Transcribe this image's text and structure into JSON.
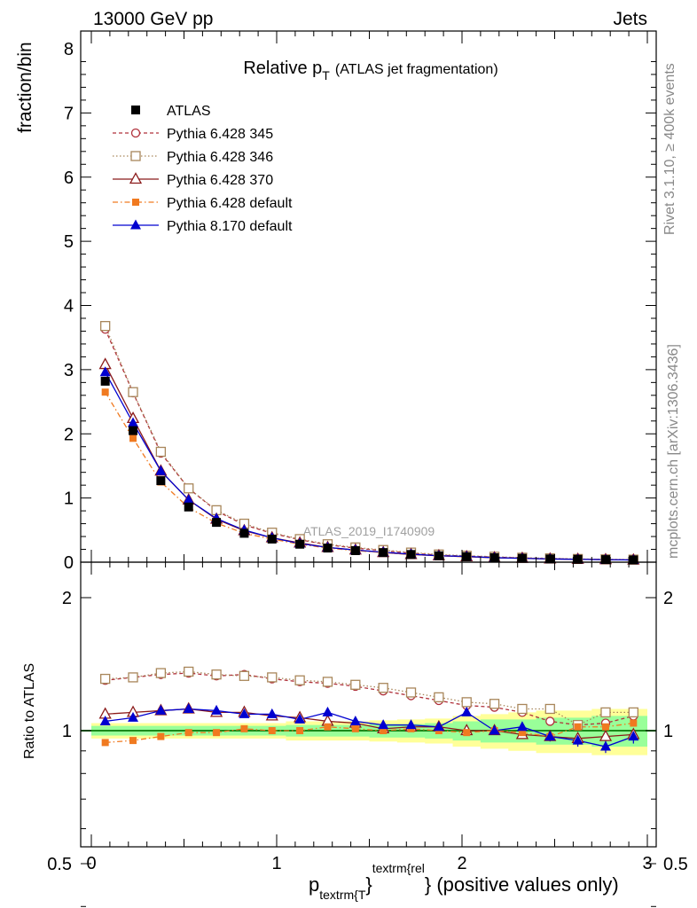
{
  "header": {
    "left": "13000 GeV pp",
    "right": "Jets"
  },
  "side_labels": {
    "rivet": "Rivet 3.1.10, ≥ 400k events",
    "mcplots": "mcplots.cern.ch [arXiv:1306.3436]"
  },
  "chart_data": {
    "type": "line",
    "title_main": "Relative p",
    "title_sub": "T",
    "title_rest": "(ATLAS jet fragmentation)",
    "watermark": "ATLAS_2019_I1740909",
    "ylabel": "fraction/bin",
    "ratio_ylabel": "Ratio to ATLAS",
    "xlabel_p": "p",
    "xlabel_sub": "textrm{T",
    "xlabel_brace": "}",
    "xlabel_sup": "textrm{rel",
    "xlabel_rest": "} (positive values only)",
    "xlim": [
      -0.05,
      3.05
    ],
    "ylim": [
      0,
      8.25
    ],
    "ratio_ylim": [
      0.35,
      2.3
    ],
    "ratio_log": true,
    "x_ticks": [
      "0",
      "1",
      "2",
      "3"
    ],
    "y_ticks": [
      "0",
      "1",
      "2",
      "3",
      "4",
      "5",
      "6",
      "7",
      "8"
    ],
    "ratio_ticks": [
      "0.5",
      "1",
      "2"
    ],
    "legend_position": "top-left",
    "x": [
      0.075,
      0.225,
      0.375,
      0.525,
      0.675,
      0.825,
      0.975,
      1.125,
      1.275,
      1.425,
      1.575,
      1.725,
      1.875,
      2.025,
      2.175,
      2.325,
      2.475,
      2.625,
      2.775,
      2.925
    ],
    "reference": {
      "name": "ATLAS",
      "color": "#000000",
      "values": [
        2.82,
        2.05,
        1.27,
        0.86,
        0.62,
        0.45,
        0.36,
        0.28,
        0.22,
        0.18,
        0.15,
        0.12,
        0.1,
        0.085,
        0.07,
        0.06,
        0.05,
        0.045,
        0.04,
        0.035
      ],
      "band_inner": [
        0.025,
        0.025,
        0.025,
        0.025,
        0.025,
        0.025,
        0.025,
        0.03,
        0.03,
        0.03,
        0.035,
        0.035,
        0.04,
        0.05,
        0.06,
        0.06,
        0.07,
        0.07,
        0.08,
        0.08
      ],
      "band_outer": [
        0.04,
        0.04,
        0.04,
        0.04,
        0.04,
        0.04,
        0.04,
        0.05,
        0.05,
        0.05,
        0.055,
        0.06,
        0.065,
        0.08,
        0.09,
        0.1,
        0.11,
        0.11,
        0.12,
        0.12
      ]
    },
    "series": [
      {
        "name": "Pythia 6.428 345",
        "color": "#b0303a",
        "marker": "circle-open",
        "dash": "4,3",
        "values": [
          3.63,
          2.64,
          1.7,
          1.15,
          0.8,
          0.58,
          0.45,
          0.35,
          0.27,
          0.22,
          0.18,
          0.14,
          0.11,
          0.095,
          0.08,
          0.065,
          0.055,
          0.046,
          0.042,
          0.037
        ],
        "ratio": [
          1.3,
          1.32,
          1.34,
          1.35,
          1.33,
          1.34,
          1.31,
          1.29,
          1.28,
          1.26,
          1.23,
          1.2,
          1.17,
          1.14,
          1.13,
          1.1,
          1.05,
          1.03,
          1.04,
          1.08
        ]
      },
      {
        "name": "Pythia 6.428 346",
        "color": "#a8865a",
        "marker": "square-open",
        "dash": "1.5,2.5",
        "values": [
          3.68,
          2.65,
          1.72,
          1.15,
          0.81,
          0.6,
          0.46,
          0.36,
          0.28,
          0.23,
          0.19,
          0.15,
          0.12,
          0.1,
          0.085,
          0.07,
          0.06,
          0.05,
          0.045,
          0.04
        ],
        "ratio": [
          1.31,
          1.32,
          1.35,
          1.36,
          1.34,
          1.33,
          1.32,
          1.3,
          1.29,
          1.27,
          1.25,
          1.22,
          1.19,
          1.16,
          1.15,
          1.12,
          1.12,
          1.03,
          1.1,
          1.1
        ]
      },
      {
        "name": "Pythia 6.428 370",
        "color": "#8b1a1a",
        "marker": "triangle-open",
        "dash": "",
        "values": [
          3.08,
          2.24,
          1.42,
          0.97,
          0.67,
          0.49,
          0.38,
          0.3,
          0.23,
          0.19,
          0.15,
          0.12,
          0.1,
          0.085,
          0.07,
          0.06,
          0.05,
          0.045,
          0.04,
          0.035
        ],
        "ratio": [
          1.09,
          1.1,
          1.11,
          1.12,
          1.1,
          1.1,
          1.08,
          1.07,
          1.05,
          1.04,
          1.01,
          1.02,
          1.02,
          1.0,
          1.0,
          0.98,
          0.97,
          0.96,
          0.97,
          0.98
        ]
      },
      {
        "name": "Pythia 6.428 default",
        "color": "#f07a20",
        "marker": "square-filled",
        "dash": "6,3,1.5,3",
        "values": [
          2.65,
          1.93,
          1.25,
          0.85,
          0.61,
          0.45,
          0.36,
          0.28,
          0.22,
          0.18,
          0.15,
          0.12,
          0.1,
          0.085,
          0.07,
          0.06,
          0.05,
          0.045,
          0.04,
          0.035
        ],
        "ratio": [
          0.94,
          0.95,
          0.97,
          0.99,
          0.99,
          1.01,
          1.0,
          1.0,
          1.02,
          1.01,
          1.0,
          1.01,
          1.0,
          0.99,
          1.0,
          0.99,
          0.97,
          1.02,
          1.02,
          1.04
        ]
      },
      {
        "name": "Pythia 8.170 default",
        "color": "#0000d0",
        "marker": "triangle-filled",
        "dash": "",
        "values": [
          2.96,
          2.17,
          1.42,
          0.97,
          0.68,
          0.5,
          0.38,
          0.29,
          0.23,
          0.19,
          0.155,
          0.125,
          0.1,
          0.09,
          0.07,
          0.06,
          0.05,
          0.045,
          0.04,
          0.035
        ],
        "ratio": [
          1.05,
          1.07,
          1.11,
          1.12,
          1.11,
          1.09,
          1.09,
          1.06,
          1.1,
          1.05,
          1.03,
          1.03,
          1.02,
          1.1,
          1.0,
          1.02,
          0.97,
          0.95,
          0.92,
          0.97
        ],
        "ratio_err": [
          0.01,
          0.01,
          0.01,
          0.01,
          0.01,
          0.01,
          0.01,
          0.01,
          0.01,
          0.015,
          0.015,
          0.015,
          0.02,
          0.02,
          0.02,
          0.025,
          0.025,
          0.03,
          0.03,
          0.035
        ]
      }
    ]
  }
}
